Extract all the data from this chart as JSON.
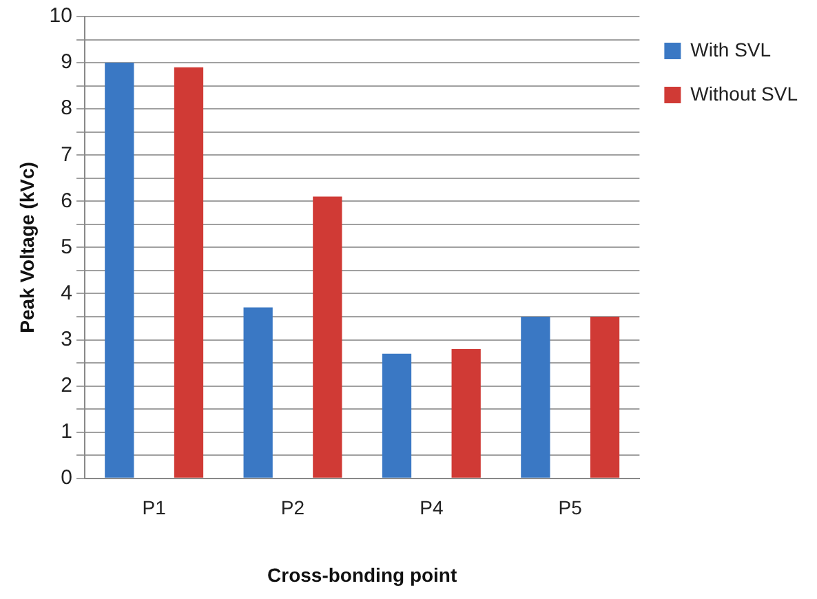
{
  "chart_data": {
    "type": "bar",
    "xlabel": "Cross-bonding point",
    "ylabel": "Peak Voltage (kVc)",
    "categories": [
      "P1",
      "P2",
      "P4",
      "P5"
    ],
    "series": [
      {
        "name": "With SVL",
        "color": "#3a78c4",
        "values": [
          9.0,
          3.7,
          2.7,
          3.5
        ]
      },
      {
        "name": "Without SVL",
        "color": "#d03a35",
        "values": [
          8.9,
          6.1,
          2.8,
          3.5
        ]
      }
    ],
    "ylim": [
      0,
      10
    ],
    "yticks": [
      0,
      {
        "value": 0.5,
        "label": null
      },
      1,
      {
        "value": 1.5,
        "label": null
      },
      2,
      {
        "value": 2.5,
        "label": null
      },
      3,
      {
        "value": 3.5,
        "label": null
      },
      4,
      {
        "value": 4.5,
        "label": null
      },
      5,
      {
        "value": 5.5,
        "label": null
      },
      6,
      {
        "value": 6.5,
        "label": null
      },
      7,
      {
        "value": 7.5,
        "label": null
      },
      8,
      {
        "value": 8.5,
        "label": null
      },
      9,
      {
        "value": 9.5,
        "label": null
      },
      10
    ],
    "grid": "y",
    "legend": "top right"
  }
}
